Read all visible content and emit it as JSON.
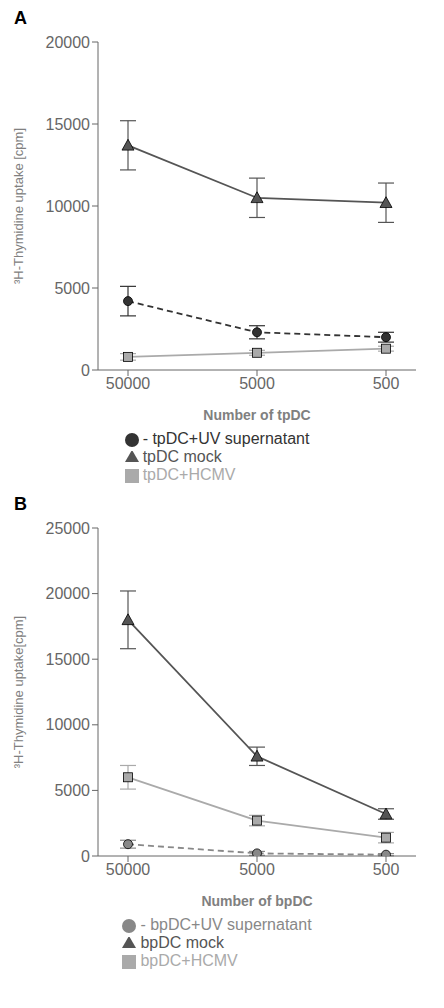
{
  "chart_data": [
    {
      "type": "line",
      "title": "A",
      "categories": [
        "50000",
        "5000",
        "500"
      ],
      "xlabel": "Number of tpDC",
      "ylabel": "³H-Thymidine uptake [cpm]",
      "ylim": [
        0,
        20000
      ],
      "yticks": [
        0,
        5000,
        10000,
        15000,
        20000
      ],
      "grid": false,
      "legend": "bottom",
      "series": [
        {
          "name": "tpDC mock",
          "color": "#555555",
          "marker": "triangle",
          "line_style": "solid",
          "values": [
            13700,
            10500,
            10200
          ],
          "errors": [
            1500,
            1200,
            1200
          ]
        },
        {
          "name": "tpDC+HCMV",
          "color": "#aaaaaa",
          "marker": "square",
          "line_style": "solid",
          "values": [
            800,
            1050,
            1300
          ],
          "errors": [
            200,
            150,
            150
          ]
        },
        {
          "name": "- tpDC+UV supernatant",
          "color": "#333333",
          "marker": "circle",
          "line_style": "dashed",
          "values": [
            4200,
            2300,
            2000
          ],
          "errors": [
            900,
            400,
            300
          ]
        }
      ]
    },
    {
      "type": "line",
      "title": "B",
      "categories": [
        "50000",
        "5000",
        "500"
      ],
      "xlabel": "Number of bpDC",
      "ylabel": "³H-Thymidine uptake[cpm]",
      "ylim": [
        0,
        25000
      ],
      "yticks": [
        0,
        5000,
        10000,
        15000,
        20000,
        25000
      ],
      "grid": false,
      "legend": "bottom",
      "series": [
        {
          "name": "bpDC mock",
          "color": "#555555",
          "marker": "triangle",
          "line_style": "solid",
          "values": [
            18000,
            7600,
            3200
          ],
          "errors": [
            2200,
            700,
            400
          ]
        },
        {
          "name": "bpDC+HCMV",
          "color": "#aaaaaa",
          "marker": "square",
          "line_style": "solid",
          "values": [
            6000,
            2700,
            1400
          ],
          "errors": [
            900,
            400,
            400
          ]
        },
        {
          "name": "- bpDC+UV supernatant",
          "color": "#888888",
          "marker": "circle",
          "line_style": "dashed",
          "values": [
            900,
            200,
            100
          ],
          "errors": [
            300,
            150,
            80
          ]
        }
      ]
    }
  ]
}
